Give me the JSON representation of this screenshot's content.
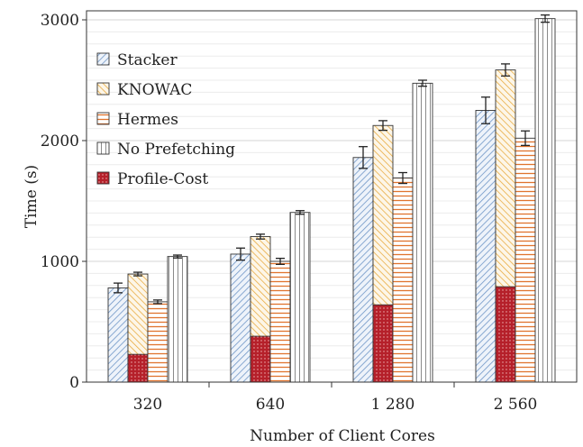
{
  "chart_data": {
    "type": "bar",
    "xlabel": "Number of Client Cores",
    "ylabel": "Time (s)",
    "ylim": [
      0,
      3000
    ],
    "yticks": [
      0,
      1000,
      2000,
      3000
    ],
    "ytick_labels": [
      "0",
      "1000",
      "2000",
      "3000"
    ],
    "minor_grid": true,
    "minor_step": 100,
    "legend_placement": "top-left",
    "categories": [
      "320",
      "640",
      "1 280",
      "2 560"
    ],
    "series": [
      {
        "name": "Stacker",
        "values": [
          780,
          1060,
          1860,
          2250
        ],
        "errors": [
          40,
          50,
          90,
          110
        ],
        "pattern": "diag-blue",
        "color": "#6f96c7"
      },
      {
        "name": "KNOWAC",
        "values": [
          895,
          1205,
          2125,
          2585
        ],
        "errors": [
          15,
          20,
          40,
          50
        ],
        "pattern": "diag-orange",
        "color": "#e8a83a"
      },
      {
        "name": "Hermes",
        "values": [
          665,
          1000,
          1690,
          2020
        ],
        "errors": [
          15,
          25,
          45,
          60
        ],
        "pattern": "horiz-orange",
        "color": "#e0742e"
      },
      {
        "name": "No Prefetching",
        "values": [
          1040,
          1405,
          2475,
          3010
        ],
        "errors": [
          12,
          15,
          25,
          30
        ],
        "pattern": "vert-gray",
        "color": "#8a8a8a"
      }
    ],
    "overlay": {
      "name": "Profile-Cost",
      "applies_to": "KNOWAC",
      "values": [
        230,
        380,
        640,
        790
      ],
      "color": "#b5202a"
    }
  }
}
